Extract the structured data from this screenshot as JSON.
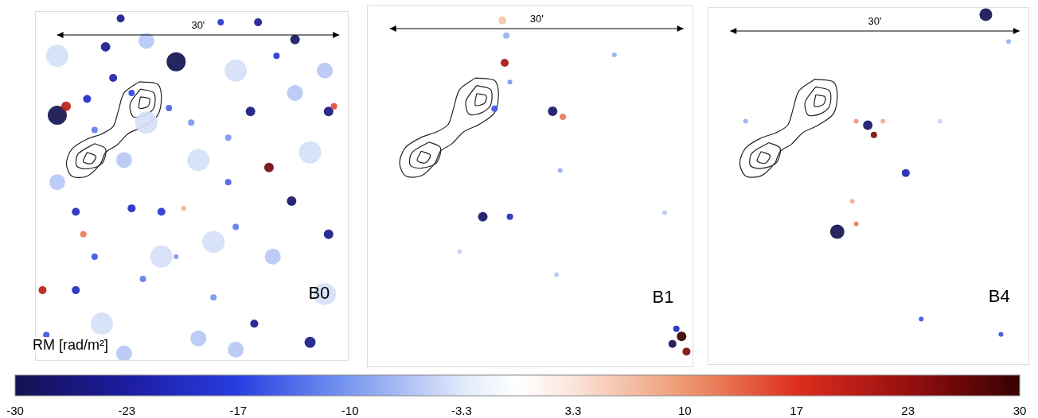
{
  "chart_data": {
    "type": "bubble",
    "tick_labels": false,
    "grid": false,
    "xlim": [
      0,
      100
    ],
    "ylim": [
      0,
      100
    ],
    "scale_bar": "30'",
    "contours": [
      [
        [
          33.2,
          79.8
        ],
        [
          39.1,
          79.1
        ],
        [
          40.3,
          75.5
        ],
        [
          39.1,
          70.2
        ],
        [
          34.4,
          67.0
        ],
        [
          29.6,
          64.9
        ],
        [
          26.1,
          61.7
        ],
        [
          22.5,
          59.6
        ],
        [
          20.9,
          56.4
        ],
        [
          16.6,
          52.8
        ],
        [
          11.8,
          52.8
        ],
        [
          10.0,
          56.4
        ],
        [
          11.8,
          60.6
        ],
        [
          16.6,
          63.4
        ],
        [
          21.3,
          64.9
        ],
        [
          24.9,
          67.0
        ],
        [
          26.5,
          71.3
        ],
        [
          28.4,
          76.6
        ]
      ],
      [
        [
          33.6,
          77.7
        ],
        [
          37.9,
          76.6
        ],
        [
          37.9,
          72.3
        ],
        [
          35.1,
          70.2
        ],
        [
          31.3,
          69.8
        ],
        [
          30.3,
          73.4
        ]
      ],
      [
        [
          33.6,
          75.5
        ],
        [
          36.5,
          74.9
        ],
        [
          36.0,
          72.8
        ],
        [
          33.2,
          72.3
        ]
      ],
      [
        [
          19.0,
          62.1
        ],
        [
          22.5,
          60.6
        ],
        [
          21.3,
          56.4
        ],
        [
          16.6,
          54.9
        ],
        [
          13.3,
          55.7
        ],
        [
          13.7,
          59.1
        ]
      ],
      [
        [
          16.6,
          59.6
        ],
        [
          19.4,
          58.5
        ],
        [
          18.0,
          56.4
        ],
        [
          15.4,
          57.0
        ]
      ]
    ],
    "panels": [
      {
        "title": "B0",
        "blobs": [
          {
            "x": 7.1,
            "y": 87.2,
            "r": 14,
            "rm": -4
          },
          {
            "x": 35.5,
            "y": 91.5,
            "r": 10,
            "rm": -6
          },
          {
            "x": 64.0,
            "y": 83.0,
            "r": 14,
            "rm": -4
          },
          {
            "x": 92.4,
            "y": 83.0,
            "r": 10,
            "rm": -6
          },
          {
            "x": 52.1,
            "y": 57.4,
            "r": 14,
            "rm": -4
          },
          {
            "x": 28.4,
            "y": 57.4,
            "r": 10,
            "rm": -6
          },
          {
            "x": 87.7,
            "y": 59.6,
            "r": 14,
            "rm": -4
          },
          {
            "x": 7.1,
            "y": 51.1,
            "r": 10,
            "rm": -6
          },
          {
            "x": 40.3,
            "y": 29.8,
            "r": 14,
            "rm": -4
          },
          {
            "x": 75.8,
            "y": 29.8,
            "r": 10,
            "rm": -6
          },
          {
            "x": 21.3,
            "y": 10.6,
            "r": 14,
            "rm": -4
          },
          {
            "x": 52.1,
            "y": 6.4,
            "r": 10,
            "rm": -6
          },
          {
            "x": 92.4,
            "y": 19.1,
            "r": 14,
            "rm": -4
          },
          {
            "x": 64.0,
            "y": 3.2,
            "r": 10,
            "rm": -6
          },
          {
            "x": 35.5,
            "y": 68.1,
            "r": 14,
            "rm": -4
          },
          {
            "x": 82.9,
            "y": 76.6,
            "r": 10,
            "rm": -6
          },
          {
            "x": 56.9,
            "y": 34.0,
            "r": 14,
            "rm": -4
          },
          {
            "x": 28.4,
            "y": 2.1,
            "r": 10,
            "rm": -6
          },
          {
            "x": 27.3,
            "y": 97.9,
            "r": 5,
            "rm": -25
          },
          {
            "x": 45.0,
            "y": 85.5,
            "r": 12,
            "rm": -30
          },
          {
            "x": 22.5,
            "y": 89.8,
            "r": 6,
            "rm": -25
          },
          {
            "x": 59.2,
            "y": 96.8,
            "r": 4,
            "rm": -18
          },
          {
            "x": 71.1,
            "y": 96.8,
            "r": 5,
            "rm": -25
          },
          {
            "x": 82.9,
            "y": 91.9,
            "r": 6,
            "rm": -28
          },
          {
            "x": 77.0,
            "y": 87.2,
            "r": 4,
            "rm": -18
          },
          {
            "x": 7.1,
            "y": 70.2,
            "r": 12,
            "rm": -30
          },
          {
            "x": 9.9,
            "y": 72.8,
            "r": 6,
            "rm": 20
          },
          {
            "x": 16.6,
            "y": 74.9,
            "r": 5,
            "rm": -20
          },
          {
            "x": 24.9,
            "y": 80.9,
            "r": 5,
            "rm": -22
          },
          {
            "x": 30.8,
            "y": 76.6,
            "r": 4,
            "rm": -16
          },
          {
            "x": 42.7,
            "y": 72.3,
            "r": 4,
            "rm": -14
          },
          {
            "x": 68.7,
            "y": 71.3,
            "r": 6,
            "rm": -26
          },
          {
            "x": 93.6,
            "y": 71.3,
            "r": 6,
            "rm": -26
          },
          {
            "x": 95.3,
            "y": 72.8,
            "r": 4,
            "rm": 15
          },
          {
            "x": 49.8,
            "y": 68.1,
            "r": 4,
            "rm": -10
          },
          {
            "x": 19.0,
            "y": 66.0,
            "r": 4,
            "rm": -12
          },
          {
            "x": 61.6,
            "y": 63.8,
            "r": 4,
            "rm": -10
          },
          {
            "x": 74.6,
            "y": 55.3,
            "r": 6,
            "rm": 26
          },
          {
            "x": 81.8,
            "y": 45.7,
            "r": 6,
            "rm": -28
          },
          {
            "x": 61.6,
            "y": 51.1,
            "r": 4,
            "rm": -14
          },
          {
            "x": 30.8,
            "y": 43.6,
            "r": 5,
            "rm": -20
          },
          {
            "x": 40.3,
            "y": 42.6,
            "r": 5,
            "rm": -18
          },
          {
            "x": 47.4,
            "y": 43.6,
            "r": 3,
            "rm": 8
          },
          {
            "x": 15.4,
            "y": 36.2,
            "r": 4,
            "rm": 12
          },
          {
            "x": 13.0,
            "y": 42.6,
            "r": 5,
            "rm": -20
          },
          {
            "x": 93.6,
            "y": 36.2,
            "r": 6,
            "rm": -25
          },
          {
            "x": 64.0,
            "y": 38.3,
            "r": 4,
            "rm": -12
          },
          {
            "x": 19.0,
            "y": 29.8,
            "r": 4,
            "rm": -15
          },
          {
            "x": 2.4,
            "y": 20.2,
            "r": 5,
            "rm": 20
          },
          {
            "x": 13.0,
            "y": 20.2,
            "r": 5,
            "rm": -20
          },
          {
            "x": 34.4,
            "y": 23.4,
            "r": 4,
            "rm": -12
          },
          {
            "x": 45.0,
            "y": 29.8,
            "r": 3,
            "rm": -10
          },
          {
            "x": 56.9,
            "y": 18.1,
            "r": 4,
            "rm": -10
          },
          {
            "x": 69.9,
            "y": 10.6,
            "r": 5,
            "rm": -25
          },
          {
            "x": 87.7,
            "y": 5.3,
            "r": 7,
            "rm": -25
          },
          {
            "x": 3.6,
            "y": 7.4,
            "r": 4,
            "rm": -15
          }
        ]
      },
      {
        "title": "B1",
        "blobs": [
          {
            "x": 41.5,
            "y": 95.7,
            "r": 5,
            "rm": 6
          },
          {
            "x": 42.7,
            "y": 91.5,
            "r": 4,
            "rm": -8
          },
          {
            "x": 42.2,
            "y": 84.0,
            "r": 5,
            "rm": 22
          },
          {
            "x": 43.8,
            "y": 78.7,
            "r": 3,
            "rm": -10
          },
          {
            "x": 56.9,
            "y": 70.6,
            "r": 6,
            "rm": -28
          },
          {
            "x": 60.0,
            "y": 69.1,
            "r": 4,
            "rm": 12
          },
          {
            "x": 75.8,
            "y": 86.2,
            "r": 3,
            "rm": -8
          },
          {
            "x": 35.5,
            "y": 41.5,
            "r": 6,
            "rm": -28
          },
          {
            "x": 43.8,
            "y": 41.5,
            "r": 4,
            "rm": -20
          },
          {
            "x": 59.2,
            "y": 54.3,
            "r": 3,
            "rm": -8
          },
          {
            "x": 39.1,
            "y": 71.3,
            "r": 4,
            "rm": -15
          },
          {
            "x": 91.2,
            "y": 42.6,
            "r": 3,
            "rm": -6
          },
          {
            "x": 58.1,
            "y": 25.5,
            "r": 3,
            "rm": -6
          },
          {
            "x": 28.4,
            "y": 31.9,
            "r": 3,
            "rm": -5
          },
          {
            "x": 96.4,
            "y": 8.5,
            "r": 6,
            "rm": 30
          },
          {
            "x": 93.6,
            "y": 6.4,
            "r": 5,
            "rm": -30
          },
          {
            "x": 97.9,
            "y": 4.3,
            "r": 5,
            "rm": 25
          },
          {
            "x": 94.8,
            "y": 10.6,
            "r": 4,
            "rm": -20
          }
        ]
      },
      {
        "title": "B4",
        "blobs": [
          {
            "x": 86.5,
            "y": 97.9,
            "r": 8,
            "rm": -30
          },
          {
            "x": 49.8,
            "y": 67.0,
            "r": 6,
            "rm": -28
          },
          {
            "x": 51.7,
            "y": 64.3,
            "r": 4,
            "rm": 25
          },
          {
            "x": 46.2,
            "y": 68.1,
            "r": 3,
            "rm": 10
          },
          {
            "x": 54.5,
            "y": 68.1,
            "r": 3,
            "rm": 8
          },
          {
            "x": 61.6,
            "y": 53.6,
            "r": 5,
            "rm": -22
          },
          {
            "x": 40.3,
            "y": 37.2,
            "r": 9,
            "rm": -30
          },
          {
            "x": 46.2,
            "y": 39.4,
            "r": 3,
            "rm": 12
          },
          {
            "x": 45.0,
            "y": 45.7,
            "r": 3,
            "rm": 8
          },
          {
            "x": 11.8,
            "y": 68.1,
            "r": 3,
            "rm": -8
          },
          {
            "x": 66.4,
            "y": 12.8,
            "r": 3,
            "rm": -15
          },
          {
            "x": 91.2,
            "y": 8.5,
            "r": 3,
            "rm": -15
          },
          {
            "x": 93.6,
            "y": 90.4,
            "r": 3,
            "rm": -8
          },
          {
            "x": 72.3,
            "y": 68.1,
            "r": 3,
            "rm": -5
          }
        ]
      }
    ],
    "colorbar": {
      "label": "RM [rad/m²]",
      "range": [
        -30,
        30
      ],
      "ticks": [
        -30,
        {
          "value": -23.33,
          "label": "-23"
        },
        {
          "value": -16.67,
          "label": "-17"
        },
        -10,
        {
          "value": -3.33,
          "label": "-3.3"
        },
        {
          "value": 3.33,
          "label": "3.3"
        },
        10,
        {
          "value": 16.67,
          "label": "17"
        },
        {
          "value": 23.33,
          "label": "23"
        },
        30
      ]
    }
  }
}
